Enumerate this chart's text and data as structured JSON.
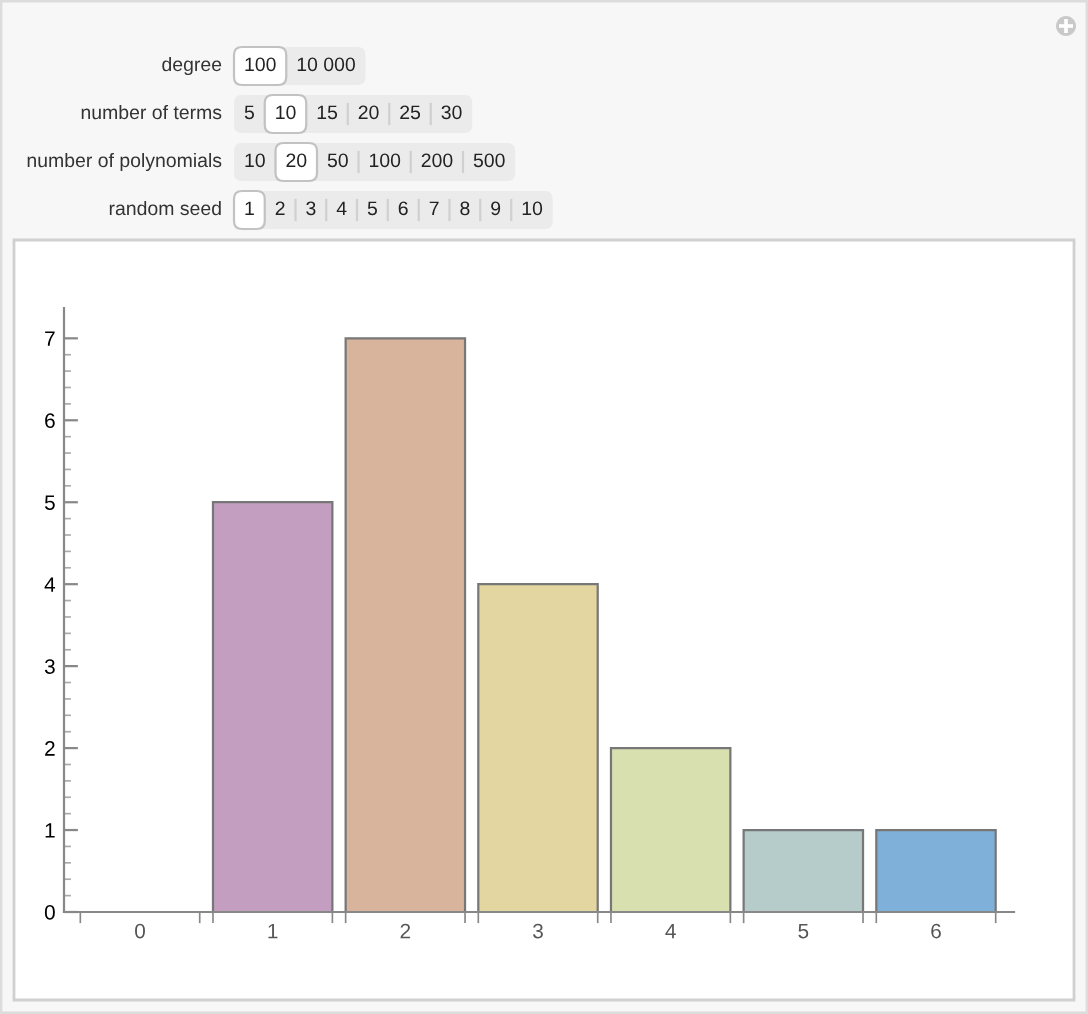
{
  "chart_data": {
    "type": "bar",
    "categories": [
      "0",
      "1",
      "2",
      "3",
      "4",
      "5",
      "6"
    ],
    "values": [
      0,
      5,
      7,
      4,
      2,
      1,
      1
    ],
    "colors": [
      "#808080",
      "#c49ec0",
      "#d8b49d",
      "#e3d6a0",
      "#d9e0b0",
      "#b5cccb",
      "#7fb0d9"
    ],
    "ylim": [
      0,
      7.37
    ],
    "yticks": [
      0,
      1,
      2,
      3,
      4,
      5,
      6,
      7
    ],
    "annotations": [
      "degree",
      "100",
      "10 000",
      "number of terms",
      "5",
      "10",
      "15",
      "20",
      "25",
      "30",
      "number of polynomials",
      "10",
      "20",
      "50",
      "100",
      "200",
      "500",
      "random seed",
      "1",
      "2",
      "3",
      "4",
      "5",
      "6",
      "7",
      "8",
      "9",
      "10"
    ]
  }
}
